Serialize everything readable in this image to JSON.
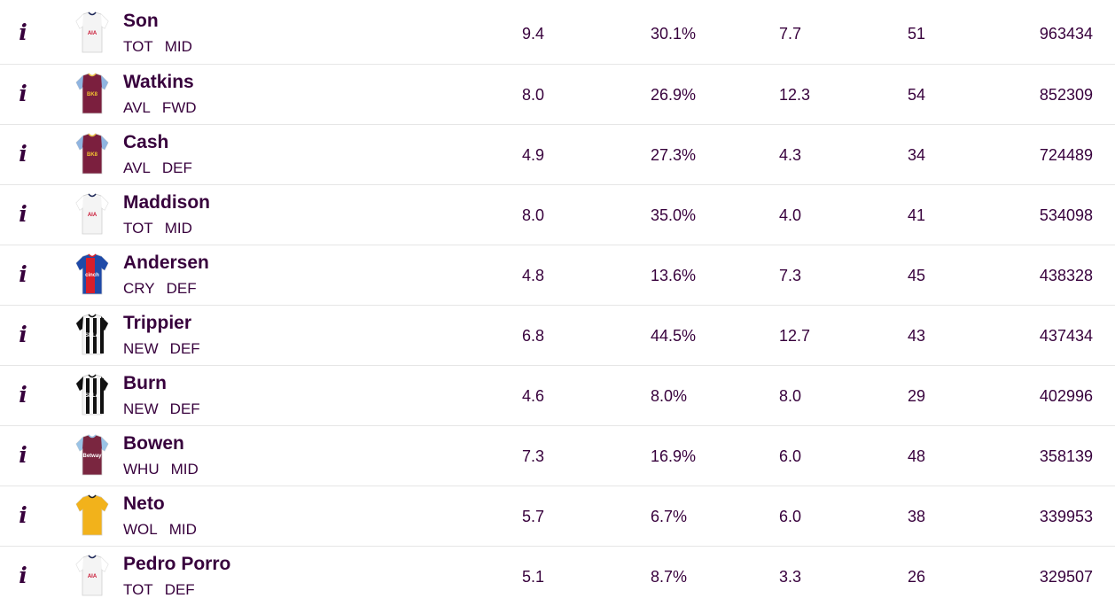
{
  "icons": {
    "info": "i",
    "shirt": "team-shirt-icon"
  },
  "players": [
    {
      "name": "Son",
      "team": "TOT",
      "position": "MID",
      "price": "9.4",
      "selected": "30.1%",
      "form": "7.7",
      "points": "51",
      "transfers": "963434",
      "kit": "tot"
    },
    {
      "name": "Watkins",
      "team": "AVL",
      "position": "FWD",
      "price": "8.0",
      "selected": "26.9%",
      "form": "12.3",
      "points": "54",
      "transfers": "852309",
      "kit": "avl"
    },
    {
      "name": "Cash",
      "team": "AVL",
      "position": "DEF",
      "price": "4.9",
      "selected": "27.3%",
      "form": "4.3",
      "points": "34",
      "transfers": "724489",
      "kit": "avl"
    },
    {
      "name": "Maddison",
      "team": "TOT",
      "position": "MID",
      "price": "8.0",
      "selected": "35.0%",
      "form": "4.0",
      "points": "41",
      "transfers": "534098",
      "kit": "tot"
    },
    {
      "name": "Andersen",
      "team": "CRY",
      "position": "DEF",
      "price": "4.8",
      "selected": "13.6%",
      "form": "7.3",
      "points": "45",
      "transfers": "438328",
      "kit": "cry"
    },
    {
      "name": "Trippier",
      "team": "NEW",
      "position": "DEF",
      "price": "6.8",
      "selected": "44.5%",
      "form": "12.7",
      "points": "43",
      "transfers": "437434",
      "kit": "new"
    },
    {
      "name": "Burn",
      "team": "NEW",
      "position": "DEF",
      "price": "4.6",
      "selected": "8.0%",
      "form": "8.0",
      "points": "29",
      "transfers": "402996",
      "kit": "new"
    },
    {
      "name": "Bowen",
      "team": "WHU",
      "position": "MID",
      "price": "7.3",
      "selected": "16.9%",
      "form": "6.0",
      "points": "48",
      "transfers": "358139",
      "kit": "whu"
    },
    {
      "name": "Neto",
      "team": "WOL",
      "position": "MID",
      "price": "5.7",
      "selected": "6.7%",
      "form": "6.0",
      "points": "38",
      "transfers": "339953",
      "kit": "wol"
    },
    {
      "name": "Pedro Porro",
      "team": "TOT",
      "position": "DEF",
      "price": "5.1",
      "selected": "8.7%",
      "form": "3.3",
      "points": "26",
      "transfers": "329507",
      "kit": "tot"
    }
  ],
  "kits": {
    "tot": {
      "body": "#f4f4f4",
      "sleeve": "#ffffff",
      "trim": "#1b2556",
      "sponsor": "AIA",
      "sponsor_color": "#c8102e"
    },
    "avl": {
      "body": "#7b1f3e",
      "sleeve": "#8fb4e0",
      "trim": "#e8c24a",
      "sponsor": "BK8",
      "sponsor_color": "#f1c232"
    },
    "cry": {
      "body": "#1f4aa8",
      "sleeve": "#1f4aa8",
      "trim": "#d81e2a",
      "sponsor": "cinch",
      "sponsor_color": "#ffffff"
    },
    "new": {
      "body": "#f5f5f5",
      "sleeve": "#111111",
      "trim": "#111111",
      "sponsor": "SELA",
      "sponsor_color": "#ffffff"
    },
    "whu": {
      "body": "#7a2640",
      "sleeve": "#9ac3e6",
      "trim": "#9ac3e6",
      "sponsor": "Betway",
      "sponsor_color": "#ffffff"
    },
    "wol": {
      "body": "#f2b21b",
      "sleeve": "#f2b21b",
      "trim": "#222222",
      "sponsor": "",
      "sponsor_color": "#222222"
    }
  }
}
